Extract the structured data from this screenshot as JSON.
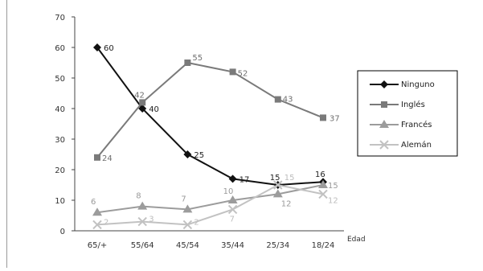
{
  "chart_data": {
    "type": "line",
    "title": "",
    "xlabel": "Edad",
    "ylabel": "",
    "categories": [
      "65/+",
      "55/64",
      "45/54",
      "35/44",
      "25/34",
      "18/24"
    ],
    "ylim": [
      0,
      70
    ],
    "yticks": [
      0,
      10,
      20,
      30,
      40,
      50,
      60,
      70
    ],
    "grid": false,
    "legend_position": "right",
    "series": [
      {
        "name": "Ninguno",
        "values": [
          60,
          40,
          25,
          17,
          15,
          16
        ],
        "color": "#111111",
        "label_color": "#222222",
        "marker": "diamond"
      },
      {
        "name": "Inglés",
        "values": [
          24,
          42,
          55,
          52,
          43,
          37
        ],
        "color": "#7a7a7a",
        "label_color": "#6f6f6f",
        "marker": "square"
      },
      {
        "name": "Francés",
        "values": [
          6,
          8,
          7,
          10,
          12,
          15
        ],
        "color": "#9c9c9c",
        "label_color": "#9a9a9a",
        "marker": "triangle"
      },
      {
        "name": "Alemán",
        "values": [
          2,
          3,
          2,
          7,
          15,
          12
        ],
        "color": "#c2c2c2",
        "label_color": "#bdbdbd",
        "marker": "x"
      }
    ]
  }
}
